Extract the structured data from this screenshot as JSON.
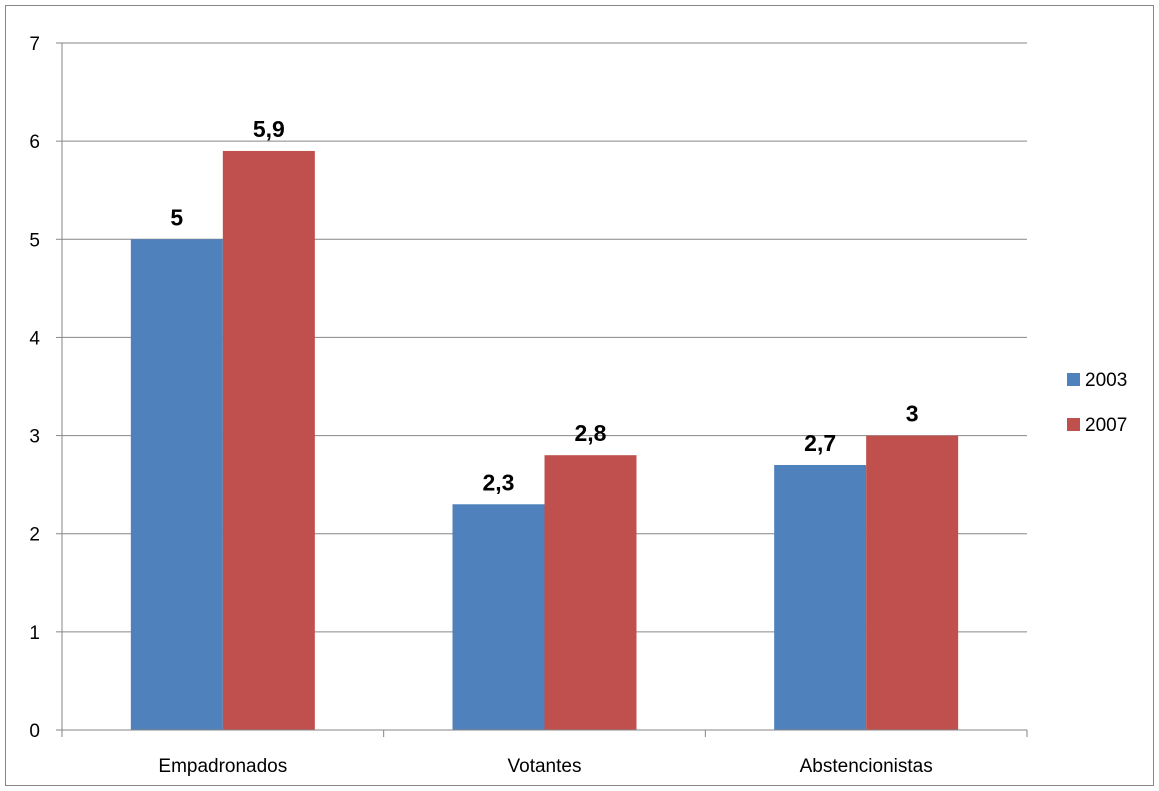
{
  "chart_data": {
    "type": "bar",
    "categories": [
      "Empadronados",
      "Votantes",
      "Abstencionistas"
    ],
    "series": [
      {
        "name": "2003",
        "values": [
          5,
          2.3,
          2.7
        ],
        "labels": [
          "5",
          "2,3",
          "2,7"
        ],
        "color": "#4F81BD"
      },
      {
        "name": "2007",
        "values": [
          5.9,
          2.8,
          3
        ],
        "labels": [
          "5,9",
          "2,8",
          "3"
        ],
        "color": "#C0504D"
      }
    ],
    "y_ticks": [
      "0",
      "1",
      "2",
      "3",
      "4",
      "5",
      "6",
      "7"
    ],
    "ylim": [
      0,
      7
    ],
    "grid": true,
    "legend_position": "right",
    "gridline_color": "#868686"
  }
}
